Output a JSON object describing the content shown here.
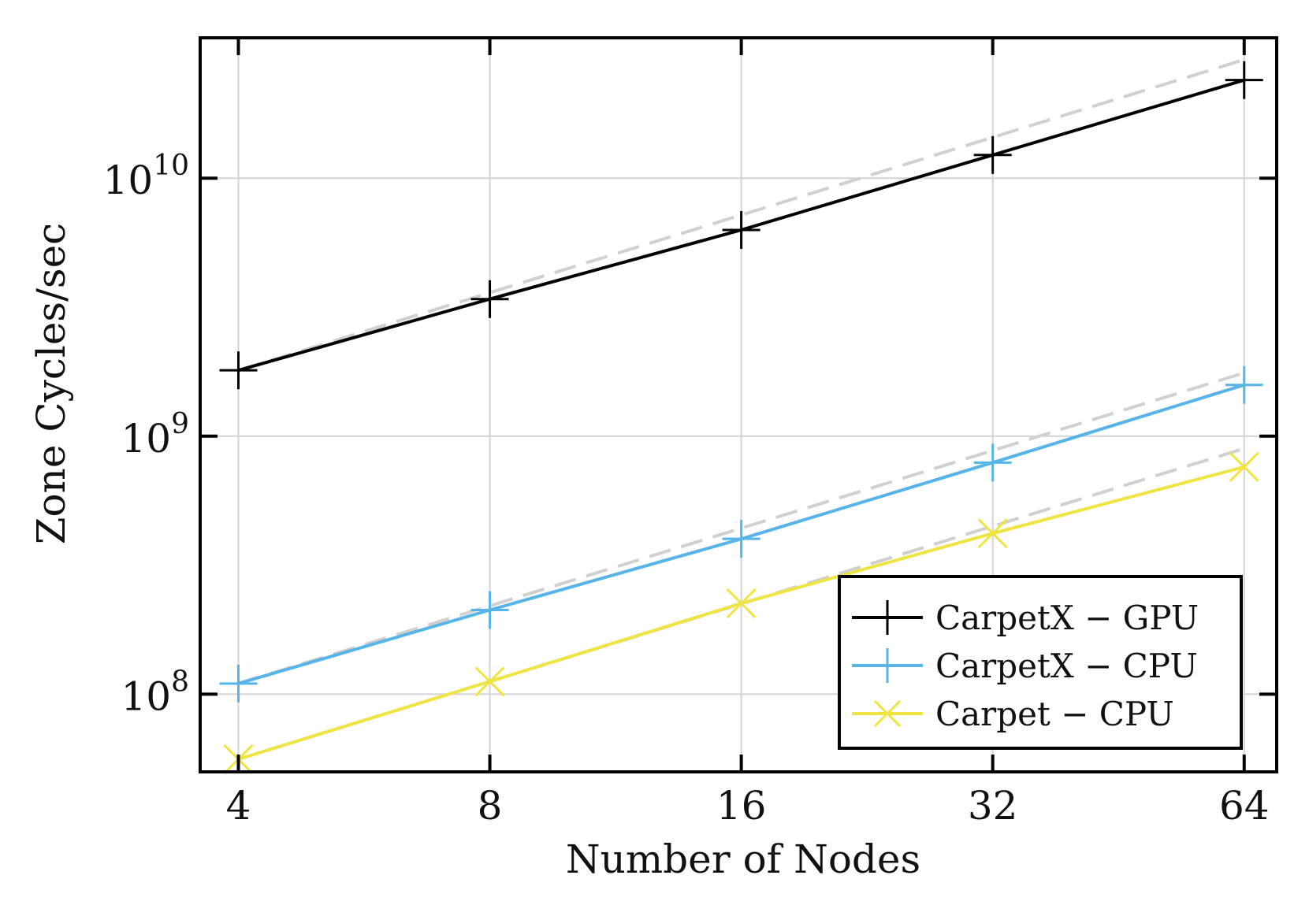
{
  "chart_data": {
    "type": "line",
    "x_scale": "log2",
    "y_scale": "log10",
    "xlabel": "Number of Nodes",
    "ylabel": "Zone Cycles/sec",
    "x": [
      4,
      8,
      16,
      32,
      64
    ],
    "x_tick_labels": [
      "4",
      "8",
      "16",
      "32",
      "64"
    ],
    "y_ticks": [
      {
        "value": 100000000,
        "base": "10",
        "exp": "8"
      },
      {
        "value": 1000000000,
        "base": "10",
        "exp": "9"
      },
      {
        "value": 10000000000,
        "base": "10",
        "exp": "10"
      }
    ],
    "xlim": [
      3.6,
      70
    ],
    "ylim": [
      50000000,
      35000000000
    ],
    "grid": true,
    "legend_position": "bottom-right",
    "series": [
      {
        "name": "CarpetX − GPU",
        "color": "#000000",
        "marker": "plus",
        "values": [
          1800000000,
          3400000000,
          6300000000,
          12300000000,
          24000000000
        ]
      },
      {
        "name": "CarpetX − CPU",
        "color": "#56b4e9",
        "marker": "plus",
        "values": [
          110000000,
          212000000,
          400000000,
          790000000,
          1580000000
        ]
      },
      {
        "name": "Carpet − CPU",
        "color": "#f0e442",
        "marker": "cross",
        "values": [
          56000000,
          112000000,
          225000000,
          420000000,
          760000000
        ]
      }
    ],
    "ideal_scaling": {
      "color": "#d0d0d0",
      "style": "dashed",
      "values": [
        [
          1800000000,
          3600000000,
          7200000000,
          14400000000,
          28800000000
        ],
        [
          110000000,
          220000000,
          440000000,
          880000000,
          1760000000
        ],
        [
          56000000,
          112000000,
          224000000,
          448000000,
          896000000
        ]
      ]
    }
  }
}
